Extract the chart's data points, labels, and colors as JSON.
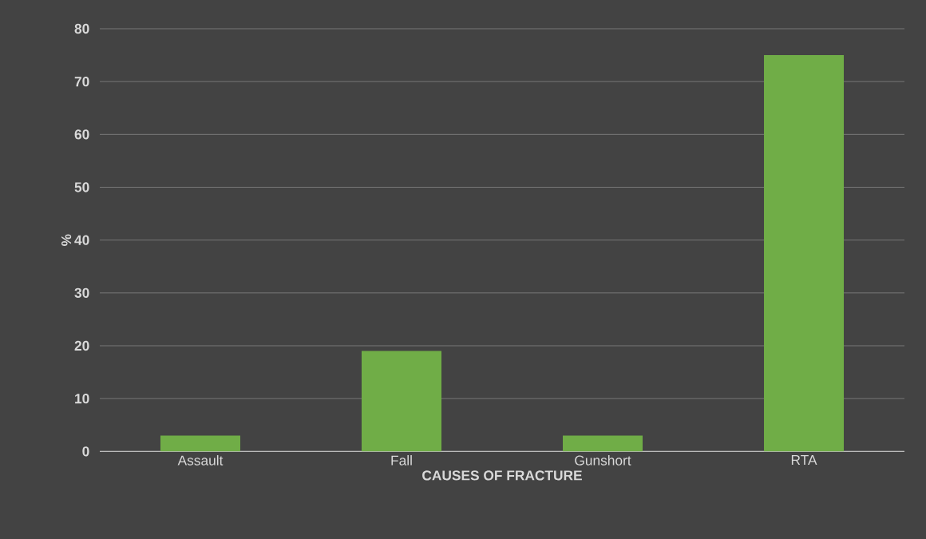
{
  "chart_data": {
    "type": "bar",
    "xlabel": "CAUSES OF FRACTURE",
    "ylabel": "%",
    "categories": [
      "Assault",
      "Fall",
      "Gunshort",
      "RTA"
    ],
    "values": [
      3,
      19,
      3,
      75
    ],
    "color": "#70ad47",
    "ylim": [
      0,
      80
    ],
    "yticks": [
      0,
      10,
      20,
      30,
      40,
      50,
      60,
      70,
      80
    ],
    "grid": "y"
  }
}
